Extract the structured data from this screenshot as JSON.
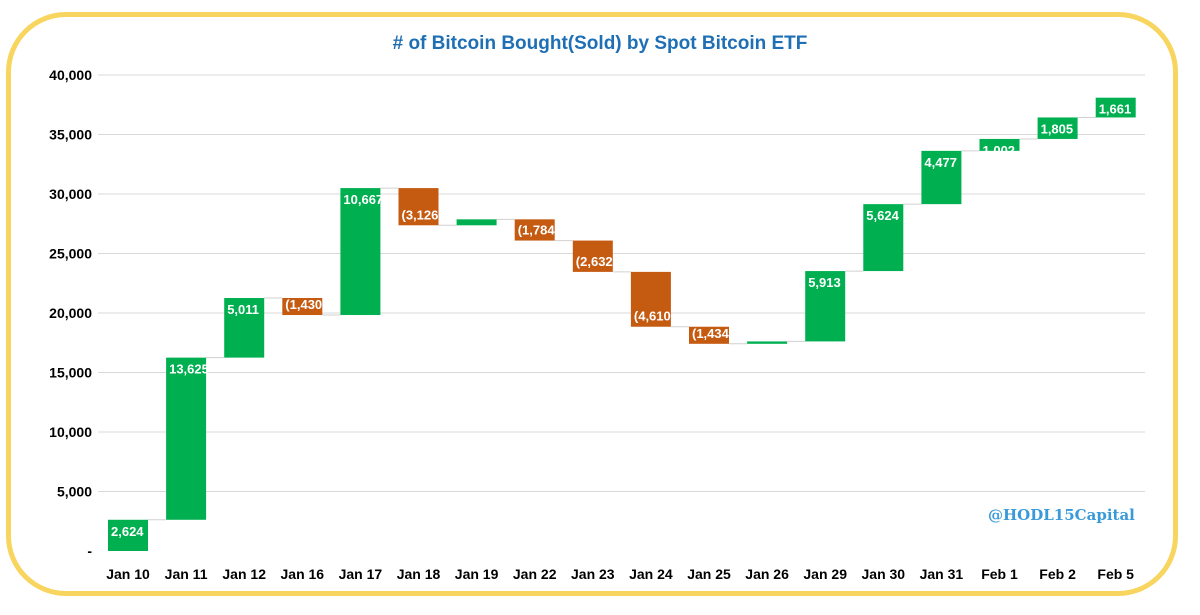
{
  "chart_data": {
    "type": "waterfall",
    "title": "# of Bitcoin Bought(Sold) by Spot Bitcoin ETF",
    "watermark": "@HODL15Capital",
    "categories": [
      "Jan 10",
      "Jan 11",
      "Jan 12",
      "Jan 16",
      "Jan 17",
      "Jan 18",
      "Jan 19",
      "Jan 22",
      "Jan 23",
      "Jan 24",
      "Jan 25",
      "Jan 26",
      "Jan 29",
      "Jan 30",
      "Jan 31",
      "Feb 1",
      "Feb 2",
      "Feb 5"
    ],
    "values": [
      2624,
      13625,
      5011,
      -1430,
      10667,
      -3126,
      500,
      -1784,
      -2632,
      -4610,
      -1434,
      200,
      5913,
      5624,
      4477,
      1002,
      1805,
      1661
    ],
    "data_labels": [
      "2,624",
      "13,625",
      "5,011",
      "(1,430",
      "10,667",
      "(3,126",
      "",
      "(1,784",
      "(2,632",
      "(4,610",
      "(1,434",
      "",
      "5,913",
      "5,624",
      "4,477",
      "1,002",
      "1,805",
      "1,661"
    ],
    "y_ticks": [
      0,
      5000,
      10000,
      15000,
      20000,
      25000,
      30000,
      35000,
      40000
    ],
    "y_tick_labels": [
      "-",
      "5,000",
      "10,000",
      "15,000",
      "20,000",
      "25,000",
      "30,000",
      "35,000",
      "40,000"
    ],
    "ylim": [
      0,
      40000
    ],
    "grid": true,
    "colors": {
      "increase": "#00b050",
      "decrease": "#c55a11",
      "title": "#1f6fb5",
      "border": "#f7d55e",
      "watermark": "#3a9ad9"
    }
  }
}
